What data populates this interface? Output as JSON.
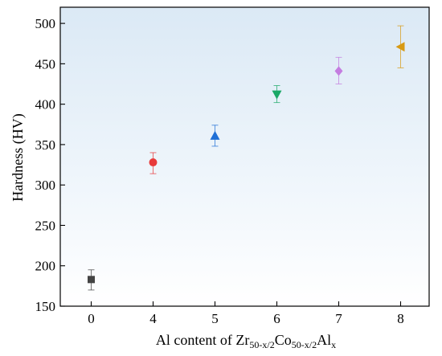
{
  "chart_data": {
    "type": "scatter",
    "ylabel": "Hardness (HV)",
    "xlabel_parts": {
      "prefix": "Al content of Zr",
      "sub1": "50-x/2",
      "mid": "Co",
      "sub2": "50-x/2",
      "tail": "Al",
      "sub3": "x"
    },
    "x_ticks": [
      "0",
      "4",
      "5",
      "6",
      "7",
      "8"
    ],
    "y_ticks": [
      150,
      200,
      250,
      300,
      350,
      400,
      450,
      500
    ],
    "ylim": [
      150,
      520
    ],
    "grid": false,
    "background": "light-blue-gradient",
    "points": [
      {
        "x": "0",
        "y": 183,
        "err_low": 170,
        "err_high": 195,
        "marker": "square",
        "color": "#444444"
      },
      {
        "x": "4",
        "y": 328,
        "err_low": 314,
        "err_high": 340,
        "marker": "circle",
        "color": "#e83a3a"
      },
      {
        "x": "5",
        "y": 361,
        "err_low": 348,
        "err_high": 374,
        "marker": "triangle-up",
        "color": "#1f6fd6"
      },
      {
        "x": "6",
        "y": 412,
        "err_low": 402,
        "err_high": 423,
        "marker": "triangle-down",
        "color": "#1aa866"
      },
      {
        "x": "7",
        "y": 441,
        "err_low": 425,
        "err_high": 458,
        "marker": "diamond",
        "color": "#c47de0"
      },
      {
        "x": "8",
        "y": 471,
        "err_low": 445,
        "err_high": 497,
        "marker": "triangle-left",
        "color": "#d89a12"
      }
    ]
  }
}
